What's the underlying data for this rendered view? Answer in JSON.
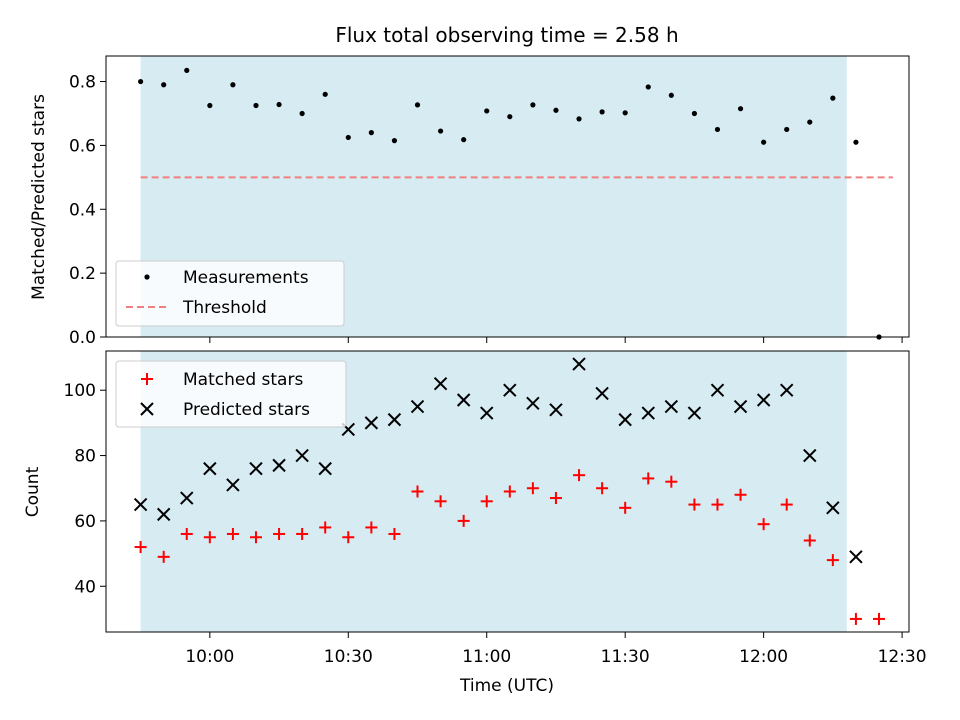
{
  "chart_data": [
    {
      "type": "scatter",
      "title": "Flux total observing time = 2.58 h",
      "ylabel": "Matched/Predicted stars",
      "ylim": [
        0,
        0.88
      ],
      "yticks": [
        0.0,
        0.2,
        0.4,
        0.6,
        0.8
      ],
      "ytick_labels": [
        "0.0",
        "0.2",
        "0.4",
        "0.6",
        "0.8"
      ],
      "observing_window": [
        "09:45",
        "12:18"
      ],
      "legend": "lower-left",
      "series": [
        {
          "name": "Measurements",
          "marker": "dot",
          "color": "#000000",
          "points": [
            [
              "09:45",
              0.8
            ],
            [
              "09:50",
              0.79
            ],
            [
              "09:55",
              0.835
            ],
            [
              "10:00",
              0.725
            ],
            [
              "10:05",
              0.79
            ],
            [
              "10:10",
              0.725
            ],
            [
              "10:15",
              0.728
            ],
            [
              "10:20",
              0.7
            ],
            [
              "10:25",
              0.76
            ],
            [
              "10:30",
              0.625
            ],
            [
              "10:35",
              0.64
            ],
            [
              "10:40",
              0.615
            ],
            [
              "10:45",
              0.727
            ],
            [
              "10:50",
              0.645
            ],
            [
              "10:55",
              0.618
            ],
            [
              "11:00",
              0.708
            ],
            [
              "11:05",
              0.69
            ],
            [
              "11:10",
              0.727
            ],
            [
              "11:15",
              0.71
            ],
            [
              "11:20",
              0.683
            ],
            [
              "11:25",
              0.705
            ],
            [
              "11:30",
              0.702
            ],
            [
              "11:35",
              0.783
            ],
            [
              "11:40",
              0.757
            ],
            [
              "11:45",
              0.7
            ],
            [
              "11:50",
              0.65
            ],
            [
              "11:55",
              0.715
            ],
            [
              "12:00",
              0.61
            ],
            [
              "12:05",
              0.65
            ],
            [
              "12:10",
              0.673
            ],
            [
              "12:15",
              0.748
            ],
            [
              "12:20",
              0.61
            ],
            [
              "12:25",
              0.0
            ]
          ]
        },
        {
          "name": "Threshold",
          "type": "line",
          "style": "dashed",
          "color": "#f08080",
          "points": [
            [
              "09:45",
              0.5
            ],
            [
              "12:28",
              0.5
            ]
          ]
        }
      ]
    },
    {
      "type": "scatter",
      "xlabel": "Time (UTC)",
      "ylabel": "Count",
      "ylim": [
        26,
        112
      ],
      "yticks": [
        40,
        60,
        80,
        100
      ],
      "xticks": [
        "10:00",
        "10:30",
        "11:00",
        "11:30",
        "12:00",
        "12:30"
      ],
      "observing_window": [
        "09:45",
        "12:18"
      ],
      "legend": "top-left",
      "series": [
        {
          "name": "Matched stars",
          "marker": "plus",
          "color": "#ff0000",
          "points": [
            [
              "09:45",
              52
            ],
            [
              "09:50",
              49
            ],
            [
              "09:55",
              56
            ],
            [
              "10:00",
              55
            ],
            [
              "10:05",
              56
            ],
            [
              "10:10",
              55
            ],
            [
              "10:15",
              56
            ],
            [
              "10:20",
              56
            ],
            [
              "10:25",
              58
            ],
            [
              "10:30",
              55
            ],
            [
              "10:35",
              58
            ],
            [
              "10:40",
              56
            ],
            [
              "10:45",
              69
            ],
            [
              "10:50",
              66
            ],
            [
              "10:55",
              60
            ],
            [
              "11:00",
              66
            ],
            [
              "11:05",
              69
            ],
            [
              "11:10",
              70
            ],
            [
              "11:15",
              67
            ],
            [
              "11:20",
              74
            ],
            [
              "11:25",
              70
            ],
            [
              "11:30",
              64
            ],
            [
              "11:35",
              73
            ],
            [
              "11:40",
              72
            ],
            [
              "11:45",
              65
            ],
            [
              "11:50",
              65
            ],
            [
              "11:55",
              68
            ],
            [
              "12:00",
              59
            ],
            [
              "12:05",
              65
            ],
            [
              "12:10",
              54
            ],
            [
              "12:15",
              48
            ],
            [
              "12:20",
              30
            ],
            [
              "12:25",
              30
            ]
          ]
        },
        {
          "name": "Predicted stars",
          "marker": "x",
          "color": "#000000",
          "points": [
            [
              "09:45",
              65
            ],
            [
              "09:50",
              62
            ],
            [
              "09:55",
              67
            ],
            [
              "10:00",
              76
            ],
            [
              "10:05",
              71
            ],
            [
              "10:10",
              76
            ],
            [
              "10:15",
              77
            ],
            [
              "10:20",
              80
            ],
            [
              "10:25",
              76
            ],
            [
              "10:30",
              88
            ],
            [
              "10:35",
              90
            ],
            [
              "10:40",
              91
            ],
            [
              "10:45",
              95
            ],
            [
              "10:50",
              102
            ],
            [
              "10:55",
              97
            ],
            [
              "11:00",
              93
            ],
            [
              "11:05",
              100
            ],
            [
              "11:10",
              96
            ],
            [
              "11:15",
              94
            ],
            [
              "11:20",
              108
            ],
            [
              "11:25",
              99
            ],
            [
              "11:30",
              91
            ],
            [
              "11:35",
              93
            ],
            [
              "11:40",
              95
            ],
            [
              "11:45",
              93
            ],
            [
              "11:50",
              100
            ],
            [
              "11:55",
              95
            ],
            [
              "12:00",
              97
            ],
            [
              "12:05",
              100
            ],
            [
              "12:10",
              80
            ],
            [
              "12:15",
              64
            ],
            [
              "12:20",
              49
            ]
          ]
        }
      ]
    }
  ],
  "colors": {
    "observing_window_fill": "#add8e6",
    "threshold": "#f08080",
    "matched": "#ff0000",
    "predicted": "#000000",
    "measurements": "#000000"
  }
}
